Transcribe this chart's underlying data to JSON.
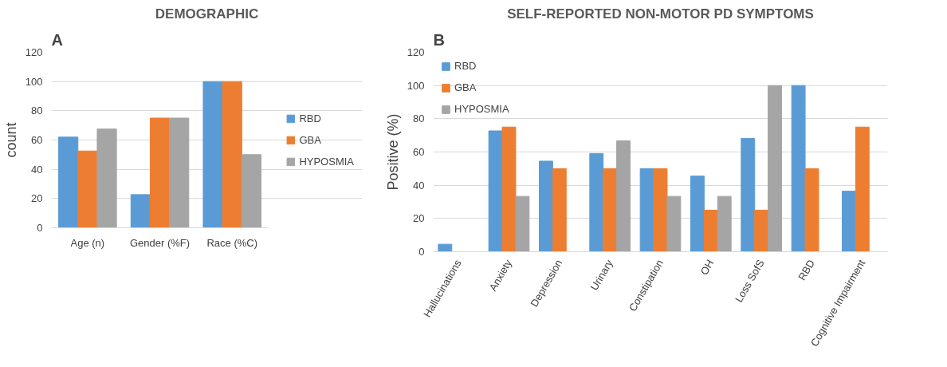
{
  "chart_data": [
    {
      "type": "bar",
      "title": "DEMOGRAPHIC",
      "ylabel": "count",
      "annotations": [
        "A"
      ],
      "categories": [
        "Age (n)",
        "Gender (%F)",
        "Race (%C)"
      ],
      "series": [
        {
          "name": "RBD",
          "color": "#5b9bd5",
          "values": [
            62,
            22.7,
            100
          ]
        },
        {
          "name": "GBA",
          "color": "#ed7d31",
          "values": [
            52.5,
            75,
            100
          ]
        },
        {
          "name": "HYPOSMIA",
          "color": "#a5a5a5",
          "values": [
            67.5,
            75,
            50
          ]
        }
      ],
      "ylim": [
        0,
        120
      ],
      "yticks": [
        0,
        20,
        40,
        60,
        80,
        100,
        120
      ],
      "grid": "y",
      "legend": "right"
    },
    {
      "type": "bar",
      "title": "SELF-REPORTED NON-MOTOR PD SYMPTOMS",
      "ylabel": "Positive (%)",
      "annotations": [
        "B"
      ],
      "categories": [
        "Hallucinations",
        "Anxiety",
        "Depression",
        "Urinary",
        "Constipation",
        "OH",
        "Loss SofS",
        "RBD",
        "Cognitive Impairment"
      ],
      "series": [
        {
          "name": "RBD",
          "color": "#5b9bd5",
          "values": [
            4.5,
            72.7,
            54.5,
            59.1,
            50,
            45.5,
            68.2,
            100,
            36.4
          ]
        },
        {
          "name": "GBA",
          "color": "#ed7d31",
          "values": [
            null,
            75,
            50,
            50,
            50,
            25,
            25,
            50,
            75
          ]
        },
        {
          "name": "HYPOSMIA",
          "color": "#a5a5a5",
          "values": [
            null,
            33.3,
            null,
            66.7,
            33.3,
            33.3,
            100,
            null,
            null
          ]
        }
      ],
      "ylim": [
        0,
        120
      ],
      "yticks": [
        0,
        20,
        40,
        60,
        80,
        100,
        120
      ],
      "grid": "y",
      "legend": "top left"
    }
  ]
}
